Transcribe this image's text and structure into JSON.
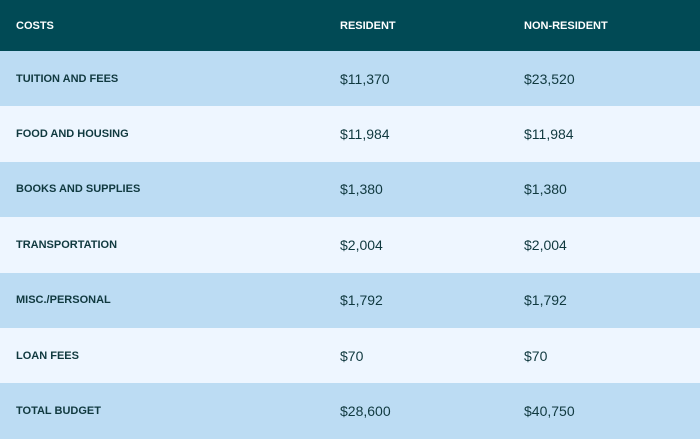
{
  "table": {
    "header": [
      "COSTS",
      "RESIDENT",
      "NON-RESIDENT"
    ],
    "rows": [
      [
        "TUITION AND FEES",
        "$11,370",
        "$23,520"
      ],
      [
        "FOOD AND HOUSING",
        "$11,984",
        "$11,984"
      ],
      [
        "BOOKS AND SUPPLIES",
        "$1,380",
        "$1,380"
      ],
      [
        "TRANSPORTATION",
        "$2,004",
        "$2,004"
      ],
      [
        "MISC./PERSONAL",
        "$1,792",
        "$1,792"
      ],
      [
        "LOAN FEES",
        "$70",
        "$70"
      ],
      [
        "TOTAL BUDGET",
        "$28,600",
        "$40,750"
      ]
    ]
  }
}
